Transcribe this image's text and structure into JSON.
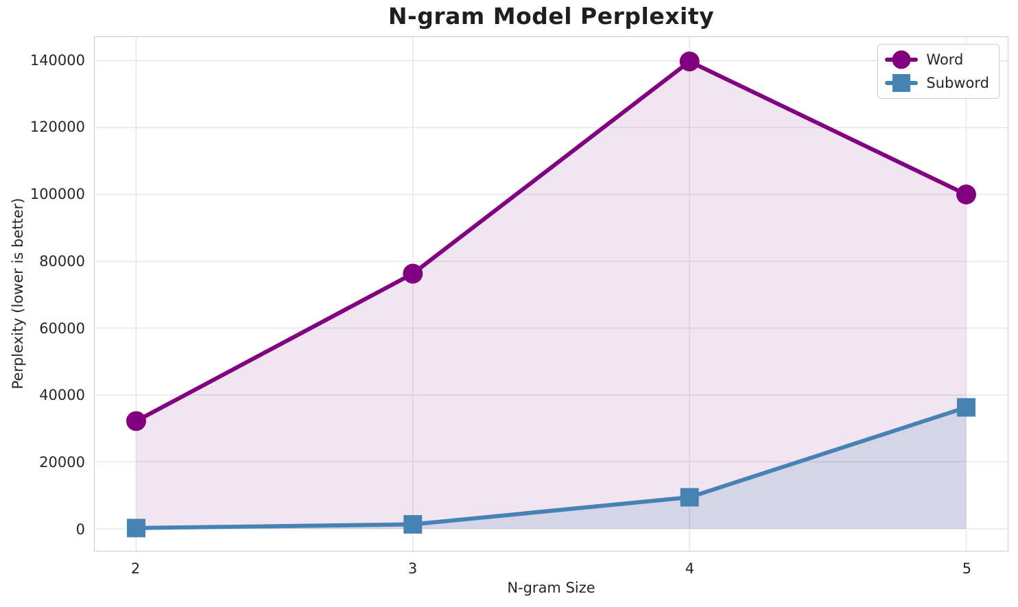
{
  "chart_data": {
    "type": "line",
    "title": "N-gram Model Perplexity",
    "xlabel": "N-gram Size",
    "ylabel": "Perplexity (lower is better)",
    "x": [
      2,
      3,
      4,
      5
    ],
    "series": [
      {
        "name": "Word",
        "values": [
          32200,
          76300,
          139800,
          100000
        ],
        "color": "#800080",
        "marker": "circle",
        "line_width": 6,
        "fill_opacity": 0.1
      },
      {
        "name": "Subword",
        "values": [
          200,
          1300,
          9400,
          36300
        ],
        "color": "#4682B4",
        "marker": "square",
        "line_width": 6,
        "fill_opacity": 0.16
      }
    ],
    "fill_baseline": 0,
    "xticks": [
      2,
      3,
      4,
      5
    ],
    "xtick_labels": [
      "2",
      "3",
      "4",
      "5"
    ],
    "yticks": [
      0,
      20000,
      40000,
      60000,
      80000,
      100000,
      120000,
      140000
    ],
    "ytick_labels": [
      "0",
      "20000",
      "40000",
      "60000",
      "80000",
      "100000",
      "120000",
      "140000"
    ],
    "xlim": [
      1.85,
      5.15
    ],
    "ylim": [
      -6600,
      147100
    ],
    "grid": true,
    "legend_position": "upper right"
  },
  "legend": {
    "items": [
      {
        "label": "Word",
        "color": "#800080",
        "marker": "circle"
      },
      {
        "label": "Subword",
        "color": "#4682B4",
        "marker": "square"
      }
    ]
  },
  "colors": {
    "background": "#ffffff",
    "grid": "#e8e8e8",
    "spine": "#cccccc",
    "text": "#262626",
    "title_text": "#1f1f1f",
    "word_series": "#800080",
    "subword_series": "#4682B4"
  }
}
